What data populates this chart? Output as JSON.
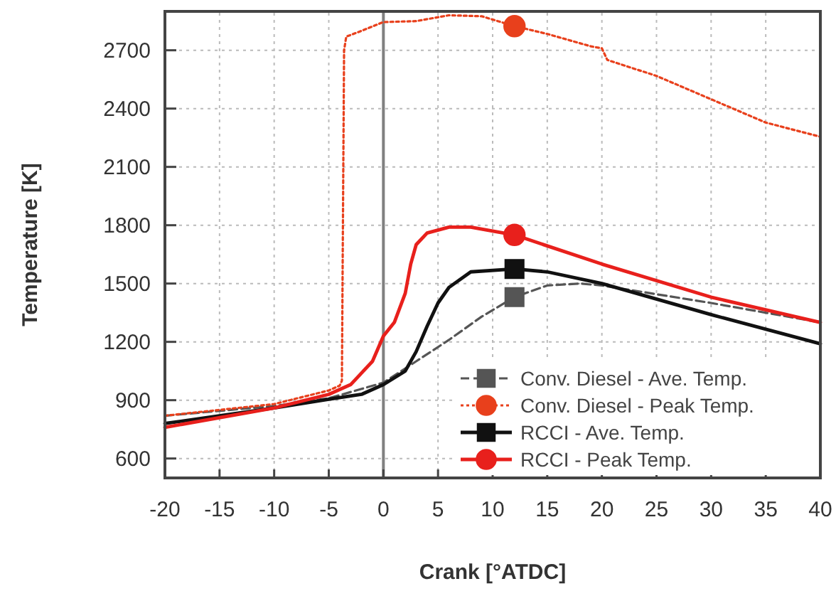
{
  "chart_data": {
    "type": "line",
    "xlabel": "Crank [°ATDC]",
    "ylabel": "Temperature [K]",
    "xlim": [
      -20,
      40
    ],
    "ylim": [
      500,
      2900
    ],
    "xticks": [
      -20,
      -15,
      -10,
      -5,
      0,
      5,
      10,
      15,
      20,
      25,
      30,
      35,
      40
    ],
    "yticks": [
      600,
      900,
      1200,
      1500,
      1800,
      2100,
      2400,
      2700
    ],
    "grid": true,
    "legend": "bottom right",
    "ref_lines": [
      {
        "axis": "x",
        "value": 0,
        "color": "#808080"
      }
    ],
    "series": [
      {
        "name": "Conv. Diesel - Ave. Temp.",
        "color": "#555555",
        "line_style": "dashed",
        "x": [
          -20,
          -10,
          -5,
          0,
          3,
          6,
          9,
          12,
          15,
          18,
          20,
          30,
          40
        ],
        "values": [
          820,
          870,
          910,
          990,
          1100,
          1210,
          1330,
          1430,
          1490,
          1500,
          1490,
          1400,
          1300
        ]
      },
      {
        "name": "Conv. Diesel - Peak Temp.",
        "color": "#e8401c",
        "line_style": "dotted",
        "x": [
          -20,
          -10,
          -5,
          -4,
          -3.8,
          -3.6,
          -3.4,
          -2,
          0,
          3,
          6,
          9,
          12,
          15,
          19,
          20,
          20.5,
          25,
          30,
          35,
          40
        ],
        "values": [
          820,
          880,
          950,
          975,
          1000,
          2700,
          2770,
          2800,
          2845,
          2850,
          2880,
          2875,
          2824,
          2784,
          2720,
          2710,
          2650,
          2568,
          2448,
          2328,
          2255
        ]
      },
      {
        "name": "RCCI - Ave. Temp.",
        "color": "#111111",
        "x": [
          -20,
          -10,
          -5,
          -2,
          0,
          2,
          3,
          4,
          5,
          6,
          8,
          12,
          15,
          20,
          30,
          40
        ],
        "values": [
          780,
          860,
          905,
          930,
          980,
          1050,
          1150,
          1280,
          1400,
          1480,
          1560,
          1575,
          1560,
          1500,
          1340,
          1190
        ]
      },
      {
        "name": "RCCI - Peak Temp.",
        "color": "#e8201c",
        "x": [
          -20,
          -10,
          -5,
          -3,
          -1,
          0,
          1,
          2,
          2.5,
          3,
          4,
          6,
          8,
          10,
          12,
          20,
          30,
          40
        ],
        "values": [
          760,
          860,
          930,
          980,
          1100,
          1230,
          1300,
          1450,
          1600,
          1700,
          1760,
          1790,
          1790,
          1770,
          1750,
          1600,
          1430,
          1300
        ]
      },
      {
        "type": "scatter",
        "color": "#555555",
        "marker": "square",
        "x": [
          12
        ],
        "values": [
          1430
        ]
      },
      {
        "type": "scatter",
        "color": "#e8401c",
        "marker": "circle",
        "x": [
          12
        ],
        "values": [
          2824
        ]
      },
      {
        "type": "scatter",
        "color": "#111111",
        "marker": "square",
        "x": [
          12
        ],
        "values": [
          1575
        ]
      },
      {
        "type": "scatter",
        "color": "#e8201c",
        "marker": "circle",
        "x": [
          12
        ],
        "values": [
          1750
        ]
      }
    ]
  }
}
